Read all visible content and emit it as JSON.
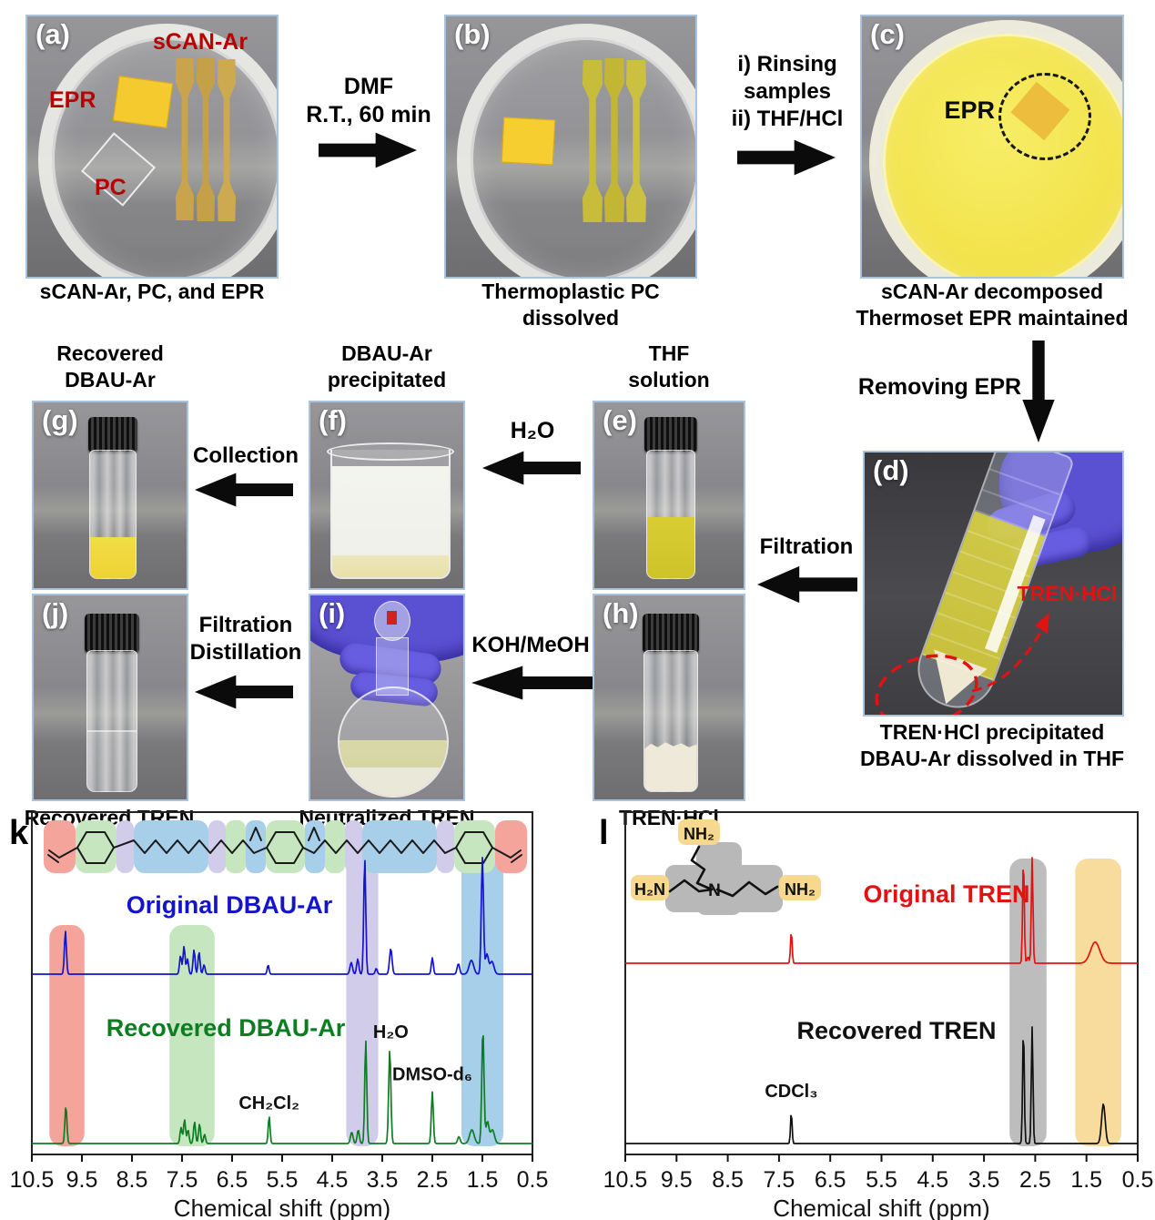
{
  "top_row": {
    "a": {
      "letter": "(a)",
      "caption": "sCAN-Ar, PC, and EPR",
      "label_scan": "sCAN-Ar",
      "label_epr": "EPR",
      "label_pc": "PC"
    },
    "arrow_ab": {
      "line1": "DMF",
      "line2": "R.T., 60 min"
    },
    "b": {
      "letter": "(b)",
      "caption": "Thermoplastic PC dissolved"
    },
    "arrow_bc": {
      "line1": "i) Rinsing",
      "line2": "samples",
      "line3": "ii) THF/HCl"
    },
    "c": {
      "letter": "(c)",
      "caption1": "sCAN-Ar decomposed",
      "caption2": "Thermoset EPR maintained",
      "label_epr": "EPR"
    }
  },
  "mid": {
    "removing_epr": "Removing EPR",
    "d": {
      "letter": "(d)",
      "caption1": "TREN·HCl precipitated",
      "caption2": "DBAU-Ar dissolved in THF",
      "label": "TREN·HCl"
    },
    "filtration": "Filtration",
    "g_header1": "Recovered",
    "g_header2": "DBAU-Ar",
    "g_letter": "(g)",
    "collection": "Collection",
    "f_header1": "DBAU-Ar",
    "f_header2": "precipitated",
    "f_letter": "(f)",
    "h2o": "H₂O",
    "e_header1": "THF",
    "e_header2": "solution",
    "e_letter": "(e)",
    "j_letter": "(j)",
    "j_caption": "Recovered TREN",
    "filt1": "Filtration",
    "filt2": "Distillation",
    "i_letter": "(i)",
    "i_caption": "Neutralized TREN",
    "koh": "KOH/MeOH",
    "h_letter": "(h)",
    "h_caption": "TREN·HCl"
  },
  "tren_structure": {
    "n": "N",
    "nh2_top": "NH₂",
    "h2n_left": "H₂N",
    "nh2_right": "NH₂"
  },
  "chart_data": [
    {
      "id": "k",
      "type": "line",
      "panel_label": "k",
      "xlabel": "Chemical shift (ppm)",
      "x_ticks": [
        "10.5",
        "9.5",
        "8.5",
        "7.5",
        "6.5",
        "5.5",
        "4.5",
        "3.5",
        "2.5",
        "1.5",
        "0.5"
      ],
      "x_range": [
        10.5,
        0.5
      ],
      "grid": false,
      "highlight_bands": [
        {
          "from": 10.15,
          "to": 9.45,
          "color": "#f5a49b",
          "tall": false
        },
        {
          "from": 7.75,
          "to": 6.85,
          "color": "#c5e6bf",
          "tall": false
        },
        {
          "from": 4.22,
          "to": 3.58,
          "color": "#d2cceb",
          "tall": true
        },
        {
          "from": 1.92,
          "to": 1.08,
          "color": "#a8cfe9",
          "tall": true
        }
      ],
      "series": [
        {
          "name": "Original DBAU-Ar",
          "color": "#1414cd",
          "peaks": [
            [
              9.83,
              0.37,
              0.02
            ],
            [
              7.53,
              0.16,
              0.02
            ],
            [
              7.46,
              0.24,
              0.02
            ],
            [
              7.39,
              0.13,
              0.02
            ],
            [
              7.26,
              0.21,
              0.02
            ],
            [
              7.16,
              0.19,
              0.02
            ],
            [
              7.06,
              0.08,
              0.02
            ],
            [
              5.78,
              0.08,
              0.018
            ],
            [
              4.12,
              0.1,
              0.025
            ],
            [
              3.99,
              0.13,
              0.022
            ],
            [
              3.85,
              1.0,
              0.02
            ],
            [
              3.62,
              0.05,
              0.02
            ],
            [
              3.33,
              0.22,
              0.025
            ],
            [
              2.5,
              0.14,
              0.02
            ],
            [
              1.98,
              0.09,
              0.025
            ],
            [
              1.72,
              0.12,
              0.045
            ],
            [
              1.5,
              1.0,
              0.022
            ],
            [
              1.41,
              0.17,
              0.03
            ],
            [
              1.31,
              0.11,
              0.04
            ]
          ]
        },
        {
          "name": "Recovered DBAU-Ar",
          "color": "#0e7d22",
          "peaks": [
            [
              9.82,
              0.33,
              0.02
            ],
            [
              7.52,
              0.14,
              0.02
            ],
            [
              7.45,
              0.21,
              0.02
            ],
            [
              7.38,
              0.12,
              0.02
            ],
            [
              7.25,
              0.19,
              0.02
            ],
            [
              7.15,
              0.17,
              0.02
            ],
            [
              7.05,
              0.08,
              0.02
            ],
            [
              5.76,
              0.24,
              0.018
            ],
            [
              4.11,
              0.1,
              0.025
            ],
            [
              3.98,
              0.12,
              0.022
            ],
            [
              3.83,
              0.9,
              0.02
            ],
            [
              3.35,
              0.82,
              0.022
            ],
            [
              2.5,
              0.45,
              0.02
            ],
            [
              1.97,
              0.06,
              0.025
            ],
            [
              1.71,
              0.12,
              0.045
            ],
            [
              1.49,
              1.0,
              0.022
            ],
            [
              1.4,
              0.19,
              0.03
            ],
            [
              1.3,
              0.12,
              0.04
            ]
          ],
          "annotations": [
            {
              "text": "CH₂Cl₂",
              "ppm": 5.76,
              "h": 0.3
            },
            {
              "text": "H₂O",
              "ppm": 3.33,
              "h": 0.92
            },
            {
              "text": "DMSO-d₆",
              "ppm": 2.5,
              "h": 0.55
            }
          ]
        }
      ]
    },
    {
      "id": "l",
      "type": "line",
      "panel_label": "l",
      "xlabel": "Chemical shift (ppm)",
      "x_ticks": [
        "10.5",
        "9.5",
        "8.5",
        "7.5",
        "6.5",
        "5.5",
        "4.5",
        "3.5",
        "2.5",
        "1.5",
        "0.5"
      ],
      "x_range": [
        10.5,
        0.5
      ],
      "grid": false,
      "highlight_bands": [
        {
          "from": 3.0,
          "to": 2.28,
          "color": "#bdbdbd",
          "tall": true
        },
        {
          "from": 1.72,
          "to": 0.82,
          "color": "#f8dc9e",
          "tall": true
        }
      ],
      "series": [
        {
          "name": "Original TREN",
          "color": "#e31212",
          "peaks": [
            [
              7.26,
              0.3,
              0.016
            ],
            [
              2.73,
              1.0,
              0.016
            ],
            [
              2.64,
              0.06,
              0.02
            ],
            [
              2.56,
              1.0,
              0.016
            ],
            [
              1.33,
              0.2,
              0.09
            ]
          ]
        },
        {
          "name": "Recovered TREN",
          "color": "#111111",
          "peaks": [
            [
              7.26,
              0.27,
              0.015
            ],
            [
              2.73,
              1.0,
              0.016
            ],
            [
              2.56,
              1.0,
              0.016
            ],
            [
              1.17,
              0.34,
              0.035
            ]
          ],
          "annotations": [
            {
              "text": "CDCl₃",
              "ppm": 7.26,
              "h": 0.4
            }
          ]
        }
      ]
    }
  ]
}
